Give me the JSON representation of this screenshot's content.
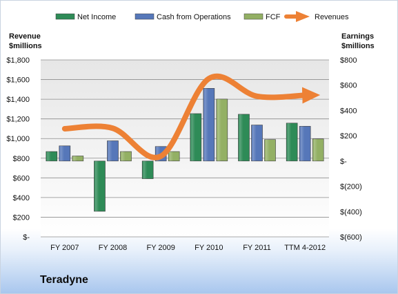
{
  "company": "Teradyne",
  "chart_data": {
    "type": "bar",
    "categories": [
      "FY 2007",
      "FY 2008",
      "FY 2009",
      "FY 2010",
      "FY 2011",
      "TTM 4-2012"
    ],
    "left_axis": {
      "title": "Revenue $millions",
      "range": [
        0,
        1800
      ],
      "ticks": [
        0,
        200,
        400,
        600,
        800,
        1000,
        1200,
        1400,
        1600,
        1800
      ],
      "tick_labels": [
        "$-",
        "$200",
        "$400",
        "$600",
        "$800",
        "$1,000",
        "$1,200",
        "$1,400",
        "$1,600",
        "$1,800"
      ]
    },
    "right_axis": {
      "title": "Earnings $millions",
      "range": [
        -600,
        800
      ],
      "ticks": [
        -600,
        -400,
        -200,
        0,
        200,
        400,
        600,
        800
      ],
      "tick_labels": [
        "$(600)",
        "$(400)",
        "$(200)",
        "$-",
        "$200",
        "$400",
        "$600",
        "$800"
      ]
    },
    "bar_series": [
      {
        "name": "Net Income",
        "axis": "right",
        "color": "#2e8b57",
        "values": [
          75,
          -398,
          -140,
          375,
          370,
          300
        ]
      },
      {
        "name": "Cash from Operations",
        "axis": "right",
        "color": "#5677b9",
        "values": [
          120,
          160,
          115,
          575,
          285,
          275
        ]
      },
      {
        "name": "FCF",
        "axis": "right",
        "color": "#93b064",
        "values": [
          40,
          75,
          75,
          490,
          170,
          175
        ]
      }
    ],
    "line_series": [
      {
        "name": "Revenues",
        "axis": "left",
        "color": "#ed8135",
        "values": [
          1100,
          1105,
          820,
          1610,
          1430,
          1440
        ]
      }
    ],
    "grid": true,
    "legend": "top"
  }
}
